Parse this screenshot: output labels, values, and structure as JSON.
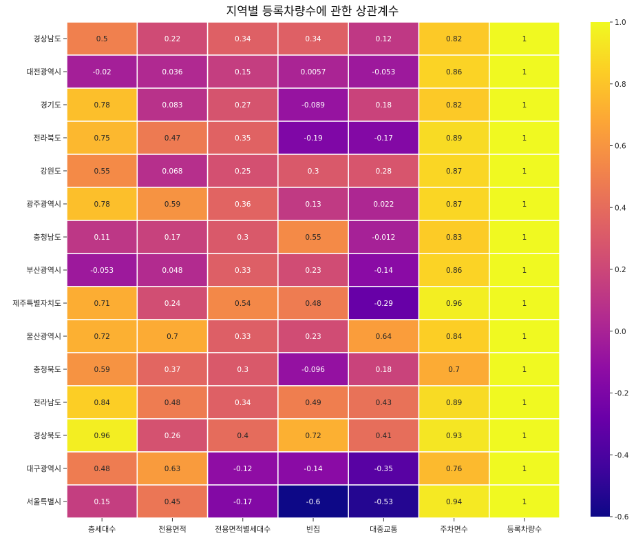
{
  "chart_data": {
    "type": "heatmap",
    "title": "지역별 등록차량수에 관한 상관계수",
    "columns": [
      "층세대수",
      "전용면적",
      "전용면적별세대수",
      "빈집",
      "대중교통",
      "주차면수",
      "등록차량수"
    ],
    "rows": [
      "경상남도",
      "대전광역시",
      "경기도",
      "전라북도",
      "강원도",
      "광주광역시",
      "충청남도",
      "부산광역시",
      "제주특별자치도",
      "울산광역시",
      "충청북도",
      "전라남도",
      "경상북도",
      "대구광역시",
      "서울특별시"
    ],
    "values": [
      [
        "0.5",
        "0.22",
        "0.34",
        "0.34",
        "0.12",
        "0.82",
        "1"
      ],
      [
        "-0.02",
        "0.036",
        "0.15",
        "0.0057",
        "-0.053",
        "0.86",
        "1"
      ],
      [
        "0.78",
        "0.083",
        "0.27",
        "-0.089",
        "0.18",
        "0.82",
        "1"
      ],
      [
        "0.75",
        "0.47",
        "0.35",
        "-0.19",
        "-0.17",
        "0.89",
        "1"
      ],
      [
        "0.55",
        "0.068",
        "0.25",
        "0.3",
        "0.28",
        "0.87",
        "1"
      ],
      [
        "0.78",
        "0.59",
        "0.36",
        "0.13",
        "0.022",
        "0.87",
        "1"
      ],
      [
        "0.11",
        "0.17",
        "0.3",
        "0.55",
        "-0.012",
        "0.83",
        "1"
      ],
      [
        "-0.053",
        "0.048",
        "0.33",
        "0.23",
        "-0.14",
        "0.86",
        "1"
      ],
      [
        "0.71",
        "0.24",
        "0.54",
        "0.48",
        "-0.29",
        "0.96",
        "1"
      ],
      [
        "0.72",
        "0.7",
        "0.33",
        "0.23",
        "0.64",
        "0.84",
        "1"
      ],
      [
        "0.59",
        "0.37",
        "0.3",
        "-0.096",
        "0.18",
        "0.7",
        "1"
      ],
      [
        "0.84",
        "0.48",
        "0.34",
        "0.49",
        "0.43",
        "0.89",
        "1"
      ],
      [
        "0.96",
        "0.26",
        "0.4",
        "0.72",
        "0.41",
        "0.93",
        "1"
      ],
      [
        "0.48",
        "0.63",
        "-0.12",
        "-0.14",
        "-0.35",
        "0.76",
        "1"
      ],
      [
        "0.15",
        "0.45",
        "-0.17",
        "-0.6",
        "-0.53",
        "0.94",
        "1"
      ]
    ],
    "colorscale": {
      "name": "plasma",
      "vmin": -0.6,
      "vmax": 1.0,
      "ticks": [
        "-0.6",
        "-0.4",
        "-0.2",
        "0.0",
        "0.2",
        "0.4",
        "0.6",
        "0.8",
        "1.0"
      ]
    },
    "grid": true,
    "colorbar_position": "right"
  }
}
